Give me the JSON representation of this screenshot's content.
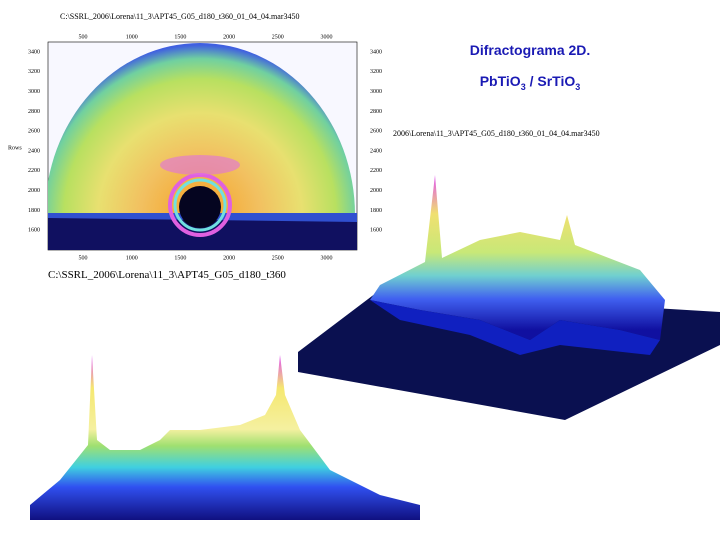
{
  "image_top": {
    "path_label": "C:\\SSRL_2006\\Lorena\\11_3\\APT45_G05_d180_t360_01_04_04.mar3450",
    "x_ticks": [
      "500",
      "1000",
      "1500",
      "2000",
      "2500",
      "3000"
    ],
    "y_ticks": [
      "3400",
      "3200",
      "3000",
      "2800",
      "2600",
      "2400",
      "2200",
      "2000",
      "1800",
      "1600"
    ],
    "y_axis_label": "Rows",
    "caption": "C:\\SSRL_2006\\Lorena\\11_3\\APT45_G05_d180_t360"
  },
  "image_3d": {
    "path_label": "2006\\Lorena\\11_3\\APT45_G05_d180_t360_01_04_04.mar3450"
  },
  "title": {
    "line1": "Difractograma 2D.",
    "line2": [
      "Pb",
      "Ti",
      "O",
      "3",
      " / Sr",
      "Ti",
      "O",
      "3"
    ]
  }
}
